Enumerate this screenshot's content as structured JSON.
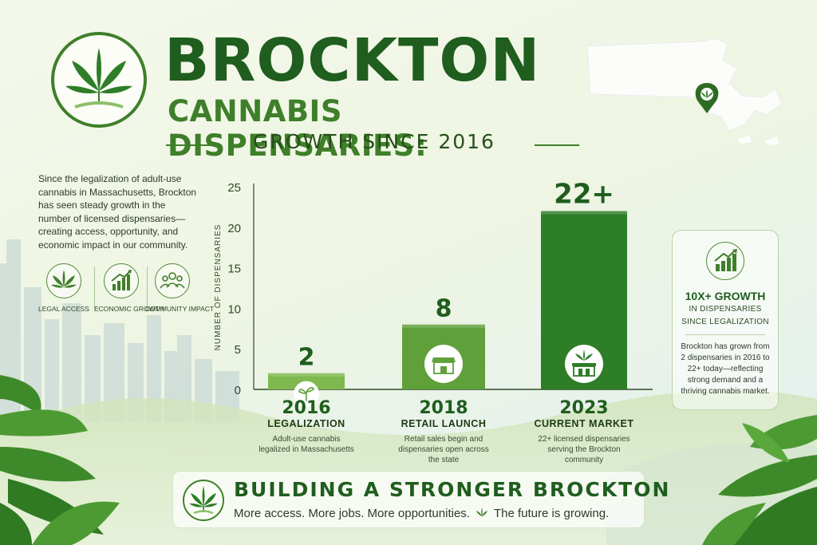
{
  "header": {
    "title": "BROCKTON",
    "subtitle": "CANNABIS DISPENSARIES:",
    "tagline": "GROWTH SINCE 2016"
  },
  "intro": {
    "text": "Since the legalization of adult-use cannabis in Massachusetts, Brockton has seen steady growth in the number of licensed dispensaries—creating access, opportunity, and economic impact in our community."
  },
  "features": [
    {
      "label": "LEGAL ACCESS",
      "icon": "cannabis-leaf-icon"
    },
    {
      "label": "ECONOMIC GROWTH",
      "icon": "growth-chart-icon"
    },
    {
      "label": "COMMUNITY IMPACT",
      "icon": "people-icon"
    }
  ],
  "chart_data": {
    "type": "bar",
    "ylabel": "NUMBER OF DISPENSARIES",
    "ylim": [
      0,
      25
    ],
    "yticks": [
      0,
      5,
      10,
      15,
      20,
      25
    ],
    "categories": [
      "2016",
      "2018",
      "2023"
    ],
    "values": [
      2,
      8,
      22
    ],
    "value_labels": [
      "2",
      "8",
      "22+"
    ],
    "bar_colors": [
      "#7fb84e",
      "#5fa03a",
      "#2e7d27"
    ],
    "bar_icons": [
      "sprout-icon",
      "storefront-icon",
      "dispensary-icon"
    ],
    "milestones": [
      {
        "year": "2016",
        "name": "LEGALIZATION",
        "desc": "Adult-use cannabis legalized in Massachusetts"
      },
      {
        "year": "2018",
        "name": "RETAIL LAUNCH",
        "desc": "Retail sales begin and dispensaries open across the state"
      },
      {
        "year": "2023",
        "name": "CURRENT MARKET",
        "desc": "22+ licensed dispensaries serving the Brockton community"
      }
    ]
  },
  "stat_card": {
    "headline": "10X+ GROWTH",
    "line1": "IN DISPENSARIES",
    "line2": "SINCE LEGALIZATION",
    "desc": "Brockton has grown from 2 dispensaries in 2016 to 22+ today—reflecting strong demand and a thriving cannabis market.",
    "icon": "growth-chart-icon"
  },
  "banner": {
    "headline": "BUILDING A STRONGER BROCKTON",
    "tag_part1": "More access. More jobs. More opportunities.",
    "tag_part2": "The future is growing."
  },
  "colors": {
    "primary": "#1f5e1e",
    "accent": "#3f7f2a",
    "light_green": "#7fb84e"
  }
}
